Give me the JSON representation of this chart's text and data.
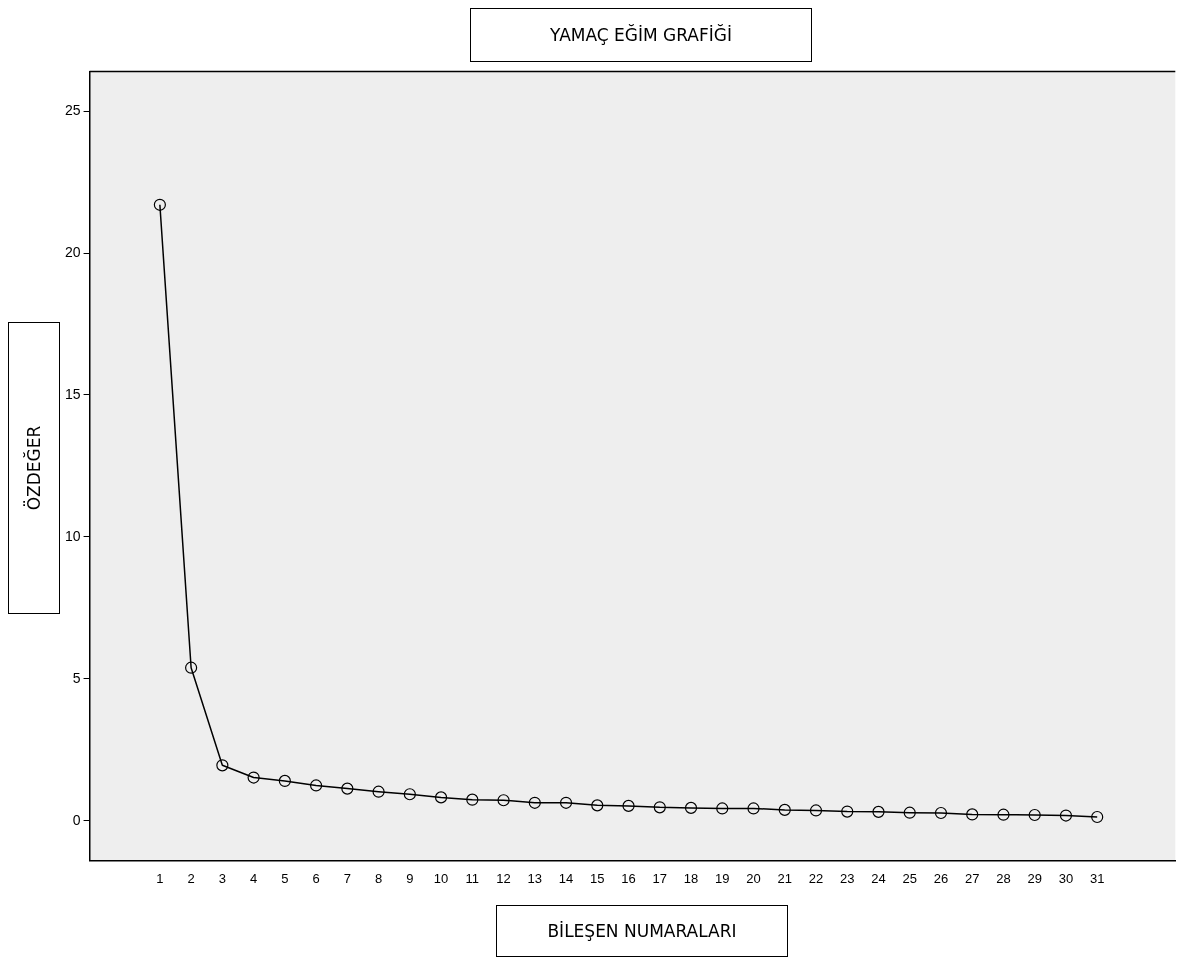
{
  "chart_data": {
    "type": "line",
    "title": "YAMAÇ EĞİM GRAFİĞİ",
    "xlabel": "BİLEŞEN NUMARALARI",
    "ylabel": "ÖZDEĞER",
    "x": [
      1,
      2,
      3,
      4,
      5,
      6,
      7,
      8,
      9,
      10,
      11,
      12,
      13,
      14,
      15,
      16,
      17,
      18,
      19,
      20,
      21,
      22,
      23,
      24,
      25,
      26,
      27,
      28,
      29,
      30,
      31
    ],
    "values": [
      21.7,
      5.39,
      1.95,
      1.52,
      1.4,
      1.24,
      1.13,
      1.02,
      0.93,
      0.82,
      0.74,
      0.72,
      0.63,
      0.63,
      0.54,
      0.52,
      0.47,
      0.45,
      0.43,
      0.43,
      0.38,
      0.36,
      0.32,
      0.31,
      0.28,
      0.27,
      0.22,
      0.21,
      0.2,
      0.18,
      0.13
    ],
    "color": "#000000",
    "marker": "circle",
    "line_style": "solid",
    "grid": false,
    "legend": false,
    "xlim": [
      -1.25,
      33.5
    ],
    "xticks": [
      1,
      2,
      3,
      4,
      5,
      6,
      7,
      8,
      9,
      10,
      11,
      12,
      13,
      14,
      15,
      16,
      17,
      18,
      19,
      20,
      21,
      22,
      23,
      24,
      25,
      26,
      27,
      28,
      29,
      30,
      31
    ],
    "ylim": [
      -1.4,
      26.4
    ],
    "yticks": [
      0,
      5,
      10,
      15,
      20,
      25
    ]
  }
}
